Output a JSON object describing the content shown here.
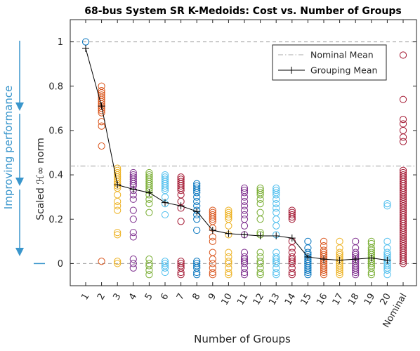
{
  "chart_data": {
    "type": "scatter",
    "title": "68-bus System SR K-Medoids: Cost vs. Number of Groups",
    "xlabel": "Number of Groups",
    "ylabel": "Scaled ℋ∞ norm",
    "side_annotation": "Improving performance",
    "ylim": [
      -0.1,
      1.1
    ],
    "yticks": [
      0,
      0.2,
      0.4,
      0.6,
      0.8,
      1
    ],
    "yticklabels": [
      "0",
      "0.2",
      "0.4",
      "0.6",
      "0.8",
      "1"
    ],
    "categories": [
      "1",
      "2",
      "3",
      "4",
      "5",
      "6",
      "7",
      "8",
      "9",
      "10",
      "11",
      "12",
      "13",
      "14",
      "15",
      "16",
      "17",
      "18",
      "19",
      "20",
      "Nominal"
    ],
    "grid": "off",
    "legend_position": "top-right",
    "legend": [
      {
        "label": "Nominal Mean",
        "style": "dash-dot",
        "color": "#aaaaaa"
      },
      {
        "label": "Grouping Mean",
        "style": "solid-plus",
        "color": "#000000"
      }
    ],
    "reference_lines": [
      {
        "name": "Nominal Mean",
        "y": 0.44
      },
      {
        "y": 1.0
      },
      {
        "y": 0.0
      }
    ],
    "series": [
      {
        "name": "Grouping Mean",
        "values": [
          0.97,
          0.71,
          0.355,
          0.335,
          0.32,
          0.275,
          0.26,
          0.235,
          0.15,
          0.135,
          0.13,
          0.125,
          0.125,
          0.115,
          0.03,
          0.02,
          0.015,
          0.02,
          0.025,
          0.015
        ]
      }
    ],
    "groups": [
      {
        "x": "1",
        "color": "#0072bd",
        "values": [
          1.0
        ]
      },
      {
        "x": "2",
        "color": "#d95319",
        "values": [
          0.8,
          0.78,
          0.77,
          0.76,
          0.75,
          0.74,
          0.73,
          0.72,
          0.71,
          0.7,
          0.69,
          0.68,
          0.64,
          0.62,
          0.53,
          0.01
        ]
      },
      {
        "x": "3",
        "color": "#edb120",
        "values": [
          0.43,
          0.42,
          0.41,
          0.4,
          0.39,
          0.38,
          0.37,
          0.36,
          0.35,
          0.34,
          0.31,
          0.28,
          0.26,
          0.24,
          0.14,
          0.13,
          0.01,
          0.0
        ]
      },
      {
        "x": "4",
        "color": "#7e2f8e",
        "values": [
          0.41,
          0.4,
          0.39,
          0.38,
          0.37,
          0.36,
          0.35,
          0.33,
          0.31,
          0.29,
          0.24,
          0.2,
          0.14,
          0.12,
          0.02,
          0.0,
          -0.02
        ]
      },
      {
        "x": "5",
        "color": "#77ac30",
        "values": [
          0.41,
          0.4,
          0.39,
          0.38,
          0.37,
          0.36,
          0.35,
          0.34,
          0.33,
          0.31,
          0.29,
          0.27,
          0.23,
          0.02,
          0.0,
          -0.01,
          -0.03,
          -0.05
        ]
      },
      {
        "x": "6",
        "color": "#4dbeee",
        "values": [
          0.4,
          0.39,
          0.38,
          0.37,
          0.36,
          0.35,
          0.34,
          0.33,
          0.3,
          0.27,
          0.22,
          0.01,
          0.0,
          -0.01,
          -0.02,
          -0.04
        ]
      },
      {
        "x": "7",
        "color": "#a2142f",
        "values": [
          0.39,
          0.38,
          0.37,
          0.36,
          0.35,
          0.34,
          0.33,
          0.31,
          0.28,
          0.25,
          0.19,
          0.01,
          0.0,
          -0.01,
          -0.02,
          -0.04,
          -0.05
        ]
      },
      {
        "x": "8",
        "color": "#0072bd",
        "values": [
          0.36,
          0.35,
          0.34,
          0.33,
          0.32,
          0.3,
          0.28,
          0.26,
          0.24,
          0.22,
          0.2,
          0.15,
          0.01,
          0.0,
          -0.01,
          -0.02,
          -0.04,
          -0.05
        ]
      },
      {
        "x": "9",
        "color": "#d95319",
        "values": [
          0.24,
          0.23,
          0.22,
          0.21,
          0.2,
          0.19,
          0.16,
          0.12,
          0.1,
          0.05,
          0.02,
          0.0,
          -0.02,
          -0.04,
          -0.05
        ]
      },
      {
        "x": "10",
        "color": "#edb120",
        "values": [
          0.24,
          0.23,
          0.22,
          0.21,
          0.2,
          0.17,
          0.13,
          0.05,
          0.03,
          0.01,
          0.0,
          -0.02,
          -0.04,
          -0.05
        ]
      },
      {
        "x": "11",
        "color": "#7e2f8e",
        "values": [
          0.34,
          0.33,
          0.32,
          0.3,
          0.28,
          0.26,
          0.24,
          0.22,
          0.2,
          0.17,
          0.13,
          0.05,
          0.03,
          0.02,
          0.01,
          0.0,
          -0.02,
          -0.04,
          -0.05
        ]
      },
      {
        "x": "12",
        "color": "#77ac30",
        "values": [
          0.34,
          0.33,
          0.32,
          0.31,
          0.29,
          0.27,
          0.23,
          0.2,
          0.14,
          0.13,
          0.05,
          0.03,
          0.01,
          0.0,
          -0.02,
          -0.04,
          -0.05
        ]
      },
      {
        "x": "13",
        "color": "#4dbeee",
        "values": [
          0.34,
          0.33,
          0.32,
          0.31,
          0.29,
          0.27,
          0.25,
          0.23,
          0.2,
          0.17,
          0.13,
          0.05,
          0.03,
          0.02,
          0.01,
          0.0,
          -0.02,
          -0.04,
          -0.05
        ]
      },
      {
        "x": "14",
        "color": "#a2142f",
        "values": [
          0.24,
          0.23,
          0.22,
          0.21,
          0.2,
          0.1,
          0.07,
          0.05,
          0.03,
          0.02,
          0.01,
          0.0,
          -0.02,
          -0.04,
          -0.05
        ]
      },
      {
        "x": "15",
        "color": "#0072bd",
        "values": [
          0.1,
          0.07,
          0.05,
          0.04,
          0.03,
          0.02,
          0.01,
          0.0,
          -0.01,
          -0.02,
          -0.03,
          -0.04,
          -0.05
        ]
      },
      {
        "x": "16",
        "color": "#d95319",
        "values": [
          0.1,
          0.08,
          0.06,
          0.05,
          0.04,
          0.03,
          0.02,
          0.01,
          0.0,
          -0.01,
          -0.02,
          -0.03,
          -0.04,
          -0.05
        ]
      },
      {
        "x": "17",
        "color": "#edb120",
        "values": [
          0.1,
          0.07,
          0.05,
          0.04,
          0.03,
          0.02,
          0.01,
          0.0,
          -0.01,
          -0.02,
          -0.03,
          -0.04,
          -0.05
        ]
      },
      {
        "x": "18",
        "color": "#7e2f8e",
        "values": [
          0.1,
          0.07,
          0.05,
          0.04,
          0.03,
          0.02,
          0.01,
          0.0,
          -0.01,
          -0.02,
          -0.03,
          -0.04,
          -0.05
        ]
      },
      {
        "x": "19",
        "color": "#77ac30",
        "values": [
          0.1,
          0.09,
          0.07,
          0.06,
          0.05,
          0.04,
          0.03,
          0.02,
          0.01,
          0.0,
          -0.01,
          -0.02,
          -0.04,
          -0.05
        ]
      },
      {
        "x": "20",
        "color": "#4dbeee",
        "values": [
          0.27,
          0.26,
          0.1,
          0.07,
          0.05,
          0.04,
          0.03,
          0.02,
          0.01,
          0.0,
          -0.01,
          -0.02,
          -0.03,
          -0.05
        ]
      },
      {
        "x": "Nominal",
        "color": "#a2142f",
        "values": [
          0.94,
          0.74,
          0.65,
          0.63,
          0.6,
          0.57,
          0.55,
          0.42,
          0.41,
          0.4,
          0.39,
          0.38,
          0.37,
          0.36,
          0.35,
          0.34,
          0.33,
          0.32,
          0.31,
          0.3,
          0.29,
          0.28,
          0.27,
          0.26,
          0.25,
          0.24,
          0.23,
          0.22,
          0.21,
          0.2,
          0.19,
          0.18,
          0.17,
          0.16,
          0.15,
          0.14,
          0.13,
          0.12,
          0.11,
          0.1,
          0.09,
          0.08,
          0.07,
          0.06,
          0.05,
          0.04,
          0.03,
          0.02,
          0.01,
          0.0
        ]
      }
    ]
  }
}
